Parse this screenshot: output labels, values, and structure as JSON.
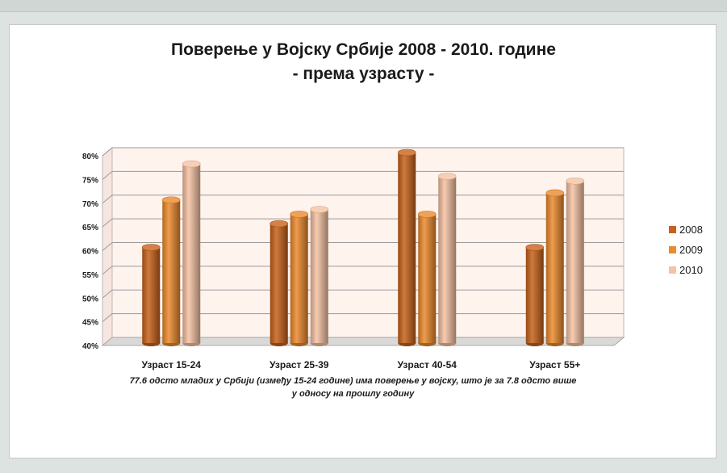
{
  "chart_data": {
    "type": "bar",
    "title": "Поверење у Војску Србије 2008 - 2010. године",
    "subtitle": "- према узрасту -",
    "categories": [
      "Узраст 15-24",
      "Узраст 25-39",
      "Узраст 40-54",
      "Узраст 55+"
    ],
    "series": [
      {
        "name": "2008",
        "values": [
          60,
          65,
          80,
          60
        ],
        "color": "#c8621a"
      },
      {
        "name": "2009",
        "values": [
          70,
          67,
          67,
          71.5
        ],
        "color": "#ec8a2e"
      },
      {
        "name": "2010",
        "values": [
          77.6,
          68,
          75,
          74
        ],
        "color": "#f6c3a3"
      }
    ],
    "ylim": [
      40,
      80
    ],
    "yticks": [
      "40%",
      "45%",
      "50%",
      "55%",
      "60%",
      "65%",
      "70%",
      "75%",
      "80%"
    ],
    "grid": true,
    "legend": "right",
    "xlabel": "",
    "ylabel": ""
  },
  "footnote": {
    "line1": "77.6 одсто младих у Србији (између 15-24 године) има поверење у војску, што је за 7.8 одсто више",
    "line2": "у односу на прошлу годину"
  }
}
